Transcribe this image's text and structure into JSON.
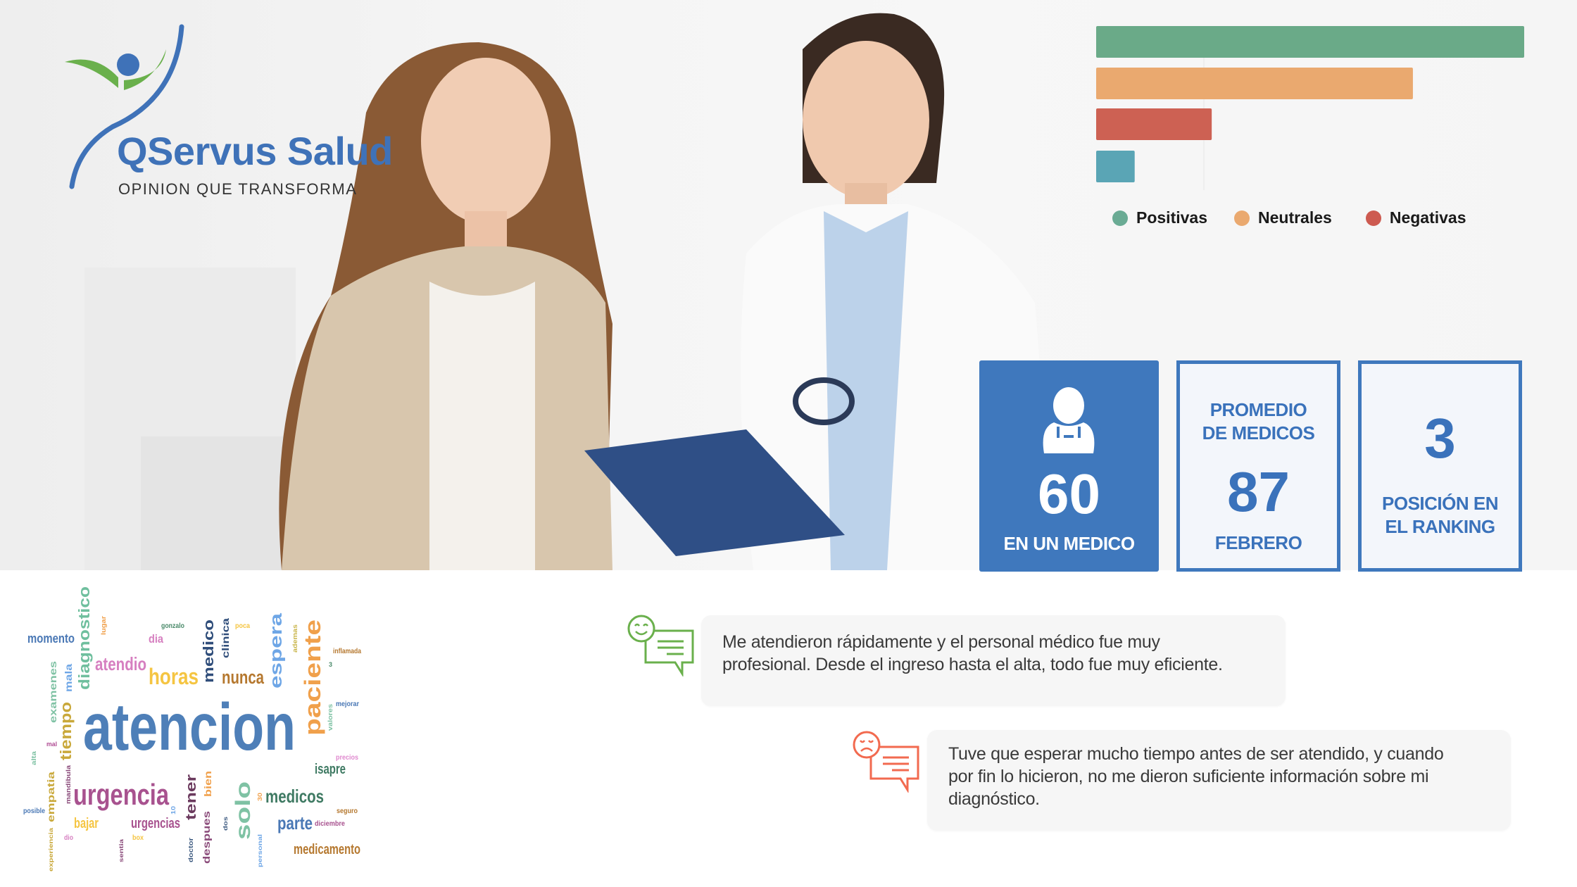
{
  "brand": {
    "name": "QServus Salud",
    "tagline": "OPINION QUE TRANSFORMA",
    "colors": {
      "blue": "#3f72b8",
      "green": "#6ab04c"
    }
  },
  "chart_data": {
    "type": "bar",
    "orientation": "horizontal",
    "values": [
      100,
      74,
      27,
      9
    ],
    "bar_colors": [
      "#6aaa88",
      "#eaa96f",
      "#cd6153",
      "#5aa5b5"
    ],
    "xlim": [
      0,
      100
    ],
    "grid": false,
    "legend": {
      "placement": "bottom",
      "entries": [
        {
          "label": "Positivas",
          "color": "#6aab94"
        },
        {
          "label": "Neutrales",
          "color": "#eaa96f"
        },
        {
          "label": "Negativas",
          "color": "#cd5a50"
        }
      ]
    }
  },
  "cards": [
    {
      "icon": "doctor-icon",
      "value": "60",
      "label": "EN UN MEDICO"
    },
    {
      "title_line1": "PROMEDIO",
      "title_line2": "DE MEDICOS",
      "value": "87",
      "label": "FEBRERO"
    },
    {
      "value": "3",
      "label_line1": "POSICIÓN EN",
      "label_line2": "EL RANKING"
    }
  ],
  "word_cloud": [
    {
      "text": "atencion",
      "color": "#4e7fb8"
    },
    {
      "text": "diagnostico",
      "color": "#6fbf9e"
    },
    {
      "text": "momento",
      "color": "#4a78b5"
    },
    {
      "text": "lugar",
      "color": "#f0a04b"
    },
    {
      "text": "gonzalo",
      "color": "#4a8a6a"
    },
    {
      "text": "dia",
      "color": "#d67fc0"
    },
    {
      "text": "atendio",
      "color": "#d67fc0"
    },
    {
      "text": "horas",
      "color": "#f5c542"
    },
    {
      "text": "medico",
      "color": "#2f4d7a"
    },
    {
      "text": "clinica",
      "color": "#2f4d7a"
    },
    {
      "text": "poca",
      "color": "#f5c542"
    },
    {
      "text": "nunca",
      "color": "#b5782f"
    },
    {
      "text": "espera",
      "color": "#6ea6e6"
    },
    {
      "text": "ademas",
      "color": "#c9b54a"
    },
    {
      "text": "paciente",
      "color": "#f0a04b"
    },
    {
      "text": "inflamada",
      "color": "#b5782f"
    },
    {
      "text": "3",
      "color": "#4a8a6a"
    },
    {
      "text": "mejorar",
      "color": "#4a78b5"
    },
    {
      "text": "valores",
      "color": "#7fc2a4"
    },
    {
      "text": "precios",
      "color": "#e089cf"
    },
    {
      "text": "isapre",
      "color": "#3f7a63"
    },
    {
      "text": "examenes",
      "color": "#7fc2a4"
    },
    {
      "text": "mala",
      "color": "#6ea6e6"
    },
    {
      "text": "tiempo",
      "color": "#c9a83a"
    },
    {
      "text": "mal",
      "color": "#b04d94"
    },
    {
      "text": "alta",
      "color": "#7fc2a4"
    },
    {
      "text": "mandibula",
      "color": "#8a4b7a"
    },
    {
      "text": "empatia",
      "color": "#c9a83a"
    },
    {
      "text": "urgencia",
      "color": "#a8528f"
    },
    {
      "text": "posible",
      "color": "#4a78b5"
    },
    {
      "text": "bajar",
      "color": "#f5c542"
    },
    {
      "text": "urgencias",
      "color": "#a8528f"
    },
    {
      "text": "dio",
      "color": "#d67fc0"
    },
    {
      "text": "box",
      "color": "#f5c542"
    },
    {
      "text": "experiencia",
      "color": "#c9a83a"
    },
    {
      "text": "sentia",
      "color": "#8a4b7a"
    },
    {
      "text": "10",
      "color": "#6ea6e6"
    },
    {
      "text": "tener",
      "color": "#6b3a5e"
    },
    {
      "text": "bien",
      "color": "#f0a04b"
    },
    {
      "text": "doctor",
      "color": "#3d5a80"
    },
    {
      "text": "despues",
      "color": "#8a4b7a"
    },
    {
      "text": "dos",
      "color": "#3d5a80"
    },
    {
      "text": "solo",
      "color": "#7fc2a4"
    },
    {
      "text": "personal",
      "color": "#6ea6e6"
    },
    {
      "text": "30",
      "color": "#f0a04b"
    },
    {
      "text": "medicos",
      "color": "#3f7a63"
    },
    {
      "text": "seguro",
      "color": "#b5782f"
    },
    {
      "text": "parte",
      "color": "#4a78b5"
    },
    {
      "text": "diciembre",
      "color": "#a8528f"
    },
    {
      "text": "medicamento",
      "color": "#b5782f"
    }
  ],
  "comments": [
    {
      "sentiment": "positive",
      "icon": "happy-comment-icon",
      "color": "#6ab04c",
      "lines": [
        "Me atendieron rápidamente y el personal médico fue muy",
        "profesional. Desde el ingreso hasta el alta, todo fue muy eficiente."
      ]
    },
    {
      "sentiment": "negative",
      "icon": "sad-comment-icon",
      "color": "#f26a4f",
      "lines": [
        "Tuve que esperar mucho tiempo antes de ser atendido, y cuando",
        "por fin lo hicieron, no me dieron suficiente información sobre mi",
        "diagnóstico."
      ]
    }
  ]
}
